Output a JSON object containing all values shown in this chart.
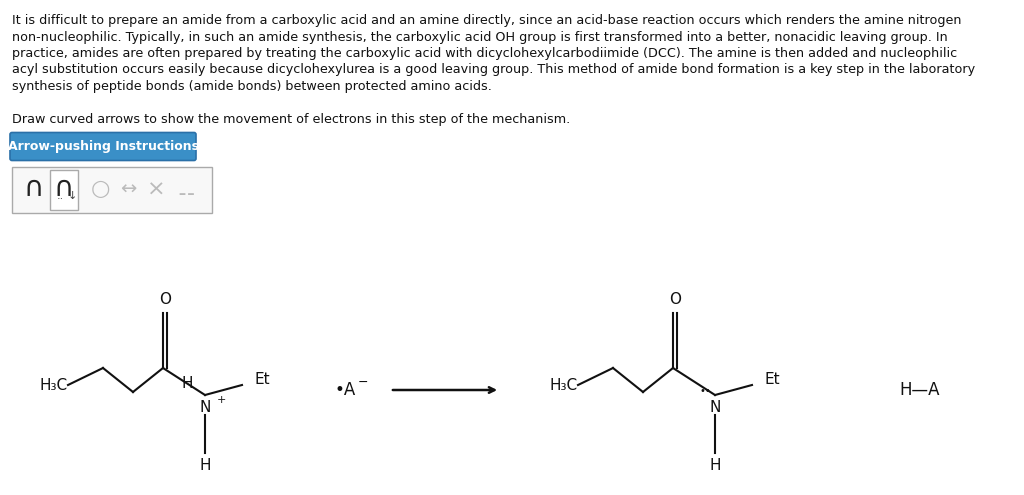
{
  "bg_color": "#ffffff",
  "paragraph_text": "It is difficult to prepare an amide from a carboxylic acid and an amine directly, since an acid-base reaction occurs which renders the amine nitrogen\nnon-nucleophilic. Typically, in such an amide synthesis, the carboxylic acid OH group is first transformed into a better, nonacidic leaving group. In\npractice, amides are often prepared by treating the carboxylic acid with dicyclohexylcarbodiimide (DCC). The amine is then added and nucleophilic\nacyl substitution occurs easily because dicyclohexylurea is a good leaving group. This method of amide bond formation is a key step in the laboratory\nsynthesis of peptide bonds (amide bonds) between protected amino acids.",
  "draw_text": "Draw curved arrows to show the movement of electrons in this step of the mechanism.",
  "button_text": "Arrow-pushing Instructions",
  "button_color": "#3a8fc7",
  "button_text_color": "#ffffff",
  "font_size_paragraph": 9.2,
  "font_size_draw": 9.2,
  "font_size_button": 9.0,
  "font_size_chem": 11
}
